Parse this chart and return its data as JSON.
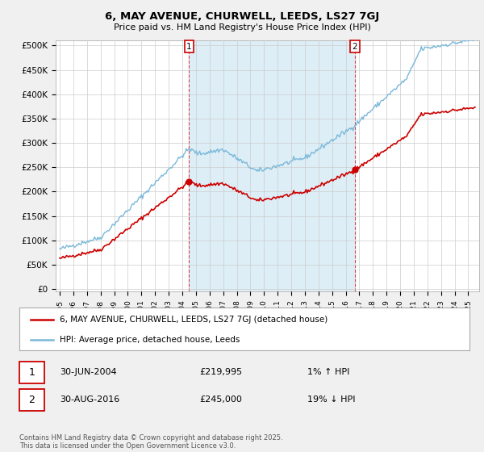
{
  "title": "6, MAY AVENUE, CHURWELL, LEEDS, LS27 7GJ",
  "subtitle": "Price paid vs. HM Land Registry's House Price Index (HPI)",
  "ylabel_ticks": [
    "£0",
    "£50K",
    "£100K",
    "£150K",
    "£200K",
    "£250K",
    "£300K",
    "£350K",
    "£400K",
    "£450K",
    "£500K"
  ],
  "ytick_values": [
    0,
    50000,
    100000,
    150000,
    200000,
    250000,
    300000,
    350000,
    400000,
    450000,
    500000
  ],
  "ylim": [
    -5000,
    510000
  ],
  "xlim_years": [
    1994.7,
    2025.8
  ],
  "hpi_color": "#7ab8d9",
  "price_paid_color": "#cc0000",
  "shade_color": "#ddeef7",
  "annotation1_year": 2004.5,
  "annotation1_price": 219995,
  "annotation2_year": 2016.67,
  "annotation2_price": 245000,
  "legend_label1": "6, MAY AVENUE, CHURWELL, LEEDS, LS27 7GJ (detached house)",
  "legend_label2": "HPI: Average price, detached house, Leeds",
  "annot1_label": "30-JUN-2004",
  "annot1_price_str": "£219,995",
  "annot1_hpi_str": "1% ↑ HPI",
  "annot2_label": "30-AUG-2016",
  "annot2_price_str": "£245,000",
  "annot2_hpi_str": "19% ↓ HPI",
  "footnote": "Contains HM Land Registry data © Crown copyright and database right 2025.\nThis data is licensed under the Open Government Licence v3.0.",
  "background_color": "#f0f0f0",
  "plot_bg_color": "#ffffff"
}
